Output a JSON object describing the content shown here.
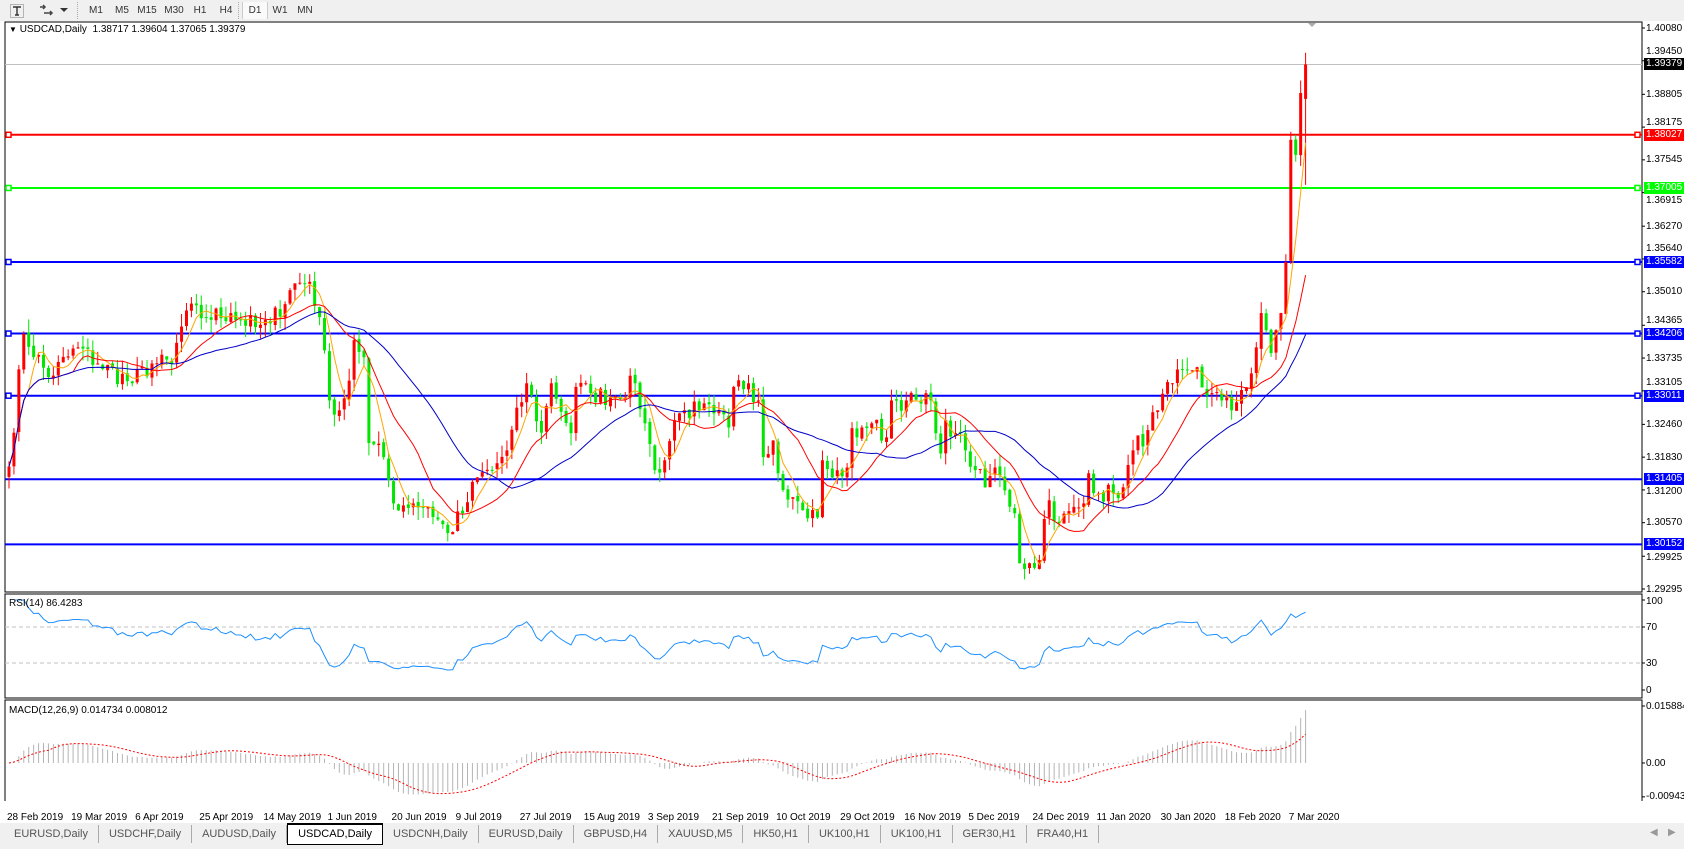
{
  "toolbar": {
    "icons": [
      "text-tool-icon",
      "arrows-tool-icon",
      "dropdown-arrow-icon"
    ],
    "timeframes": [
      {
        "label": "M1"
      },
      {
        "label": "M5"
      },
      {
        "label": "M15"
      },
      {
        "label": "M30"
      },
      {
        "label": "H1"
      },
      {
        "label": "H4"
      },
      {
        "label": "D1",
        "active": true
      },
      {
        "label": "W1"
      },
      {
        "label": "MN"
      }
    ]
  },
  "chart_header": {
    "symbol": "USDCAD,Daily",
    "ohlc_text": "1.38717 1.39604 1.37065 1.39379"
  },
  "colors": {
    "bull_candle": "#ff0000",
    "bear_candle": "#00e600",
    "ma_fast": "#ffa500",
    "ma_mid": "#ff0000",
    "ma_slow": "#0000c8",
    "rsi_line": "#1e90ff",
    "macd_hist": "#b4b4b4",
    "macd_signal": "#ff0000",
    "bid_line": "#c0c0c0"
  },
  "chart_data": {
    "type": "candlestick",
    "symbol": "USDCAD",
    "timeframe": "Daily",
    "last_bar": {
      "open": 1.38717,
      "high": 1.39604,
      "low": 1.37065,
      "close": 1.39379
    },
    "bid": "1.39379",
    "ylim": [
      1.29295,
      1.4008
    ],
    "y_ticks": [
      "1.40080",
      "1.39450",
      "1.38805",
      "1.38175",
      "1.37545",
      "1.36915",
      "1.36270",
      "1.35640",
      "1.35010",
      "1.34365",
      "1.33735",
      "1.33105",
      "1.32460",
      "1.31830",
      "1.31200",
      "1.30570",
      "1.29925",
      "1.29295"
    ],
    "x_ticks": [
      "28 Feb 2019",
      "19 Mar 2019",
      "6 Apr 2019",
      "25 Apr 2019",
      "14 May 2019",
      "1 Jun 2019",
      "20 Jun 2019",
      "9 Jul 2019",
      "27 Jul 2019",
      "15 Aug 2019",
      "3 Sep 2019",
      "21 Sep 2019",
      "10 Oct 2019",
      "29 Oct 2019",
      "16 Nov 2019",
      "5 Dec 2019",
      "24 Dec 2019",
      "11 Jan 2020",
      "30 Jan 2020",
      "18 Feb 2020",
      "7 Mar 2020"
    ],
    "x_tick_dates": [
      "2019-02-28",
      "2019-03-19",
      "2019-04-06",
      "2019-04-25",
      "2019-05-14",
      "2019-06-01",
      "2019-06-20",
      "2019-07-09",
      "2019-07-27",
      "2019-08-15",
      "2019-09-03",
      "2019-09-21",
      "2019-10-10",
      "2019-10-29",
      "2019-11-16",
      "2019-12-05",
      "2019-12-24",
      "2020-01-11",
      "2020-01-30",
      "2020-02-18",
      "2020-03-07"
    ],
    "close_path": [
      [
        "2019-02-28",
        1.3165
      ],
      [
        "2019-03-04",
        1.342
      ],
      [
        "2019-03-11",
        1.3337
      ],
      [
        "2019-03-20",
        1.3394
      ],
      [
        "2019-03-26",
        1.3363
      ],
      [
        "2019-04-05",
        1.3325
      ],
      [
        "2019-04-11",
        1.3363
      ],
      [
        "2019-04-16",
        1.3363
      ],
      [
        "2019-04-21",
        1.3465
      ],
      [
        "2019-04-26",
        1.3452
      ],
      [
        "2019-05-04",
        1.346
      ],
      [
        "2019-05-11",
        1.3433
      ],
      [
        "2019-05-16",
        1.344
      ],
      [
        "2019-05-22",
        1.3517
      ],
      [
        "2019-05-27",
        1.352
      ],
      [
        "2019-05-29",
        1.3452
      ],
      [
        "2019-06-01",
        1.3292
      ],
      [
        "2019-06-04",
        1.3273
      ],
      [
        "2019-06-07",
        1.333
      ],
      [
        "2019-06-08",
        1.3408
      ],
      [
        "2019-06-11",
        1.3375
      ],
      [
        "2019-06-13",
        1.321
      ],
      [
        "2019-06-17",
        1.3183
      ],
      [
        "2019-06-20",
        1.3094
      ],
      [
        "2019-06-26",
        1.3094
      ],
      [
        "2019-06-30",
        1.3087
      ],
      [
        "2019-07-06",
        1.3037
      ],
      [
        "2019-07-11",
        1.3075
      ],
      [
        "2019-07-14",
        1.3144
      ],
      [
        "2019-07-19",
        1.3158
      ],
      [
        "2019-07-23",
        1.3196
      ],
      [
        "2019-07-29",
        1.3325
      ],
      [
        "2019-08-02",
        1.323
      ],
      [
        "2019-08-05",
        1.3325
      ],
      [
        "2019-08-11",
        1.3229
      ],
      [
        "2019-08-12",
        1.3318
      ],
      [
        "2019-08-16",
        1.3306
      ],
      [
        "2019-08-22",
        1.3298
      ],
      [
        "2019-08-29",
        1.3325
      ],
      [
        "2019-09-01",
        1.3248
      ],
      [
        "2019-09-04",
        1.3158
      ],
      [
        "2019-09-07",
        1.3177
      ],
      [
        "2019-09-10",
        1.3254
      ],
      [
        "2019-09-13",
        1.3273
      ],
      [
        "2019-09-17",
        1.3273
      ],
      [
        "2019-09-21",
        1.3267
      ],
      [
        "2019-09-25",
        1.324
      ],
      [
        "2019-09-27",
        1.3318
      ],
      [
        "2019-10-01",
        1.3325
      ],
      [
        "2019-10-04",
        1.3292
      ],
      [
        "2019-10-05",
        1.3183
      ],
      [
        "2019-10-08",
        1.3215
      ],
      [
        "2019-10-10",
        1.3152
      ],
      [
        "2019-10-14",
        1.3106
      ],
      [
        "2019-10-18",
        1.3081
      ],
      [
        "2019-10-21",
        1.3067
      ],
      [
        "2019-10-23",
        1.3177
      ],
      [
        "2019-10-26",
        1.3144
      ],
      [
        "2019-10-30",
        1.3163
      ],
      [
        "2019-10-31",
        1.3215
      ],
      [
        "2019-11-03",
        1.324
      ],
      [
        "2019-11-06",
        1.3248
      ],
      [
        "2019-11-10",
        1.3221
      ],
      [
        "2019-11-12",
        1.3292
      ],
      [
        "2019-11-16",
        1.3292
      ],
      [
        "2019-11-20",
        1.3286
      ],
      [
        "2019-11-23",
        1.3292
      ],
      [
        "2019-11-25",
        1.3229
      ],
      [
        "2019-11-26",
        1.319
      ],
      [
        "2019-11-28",
        1.3254
      ],
      [
        "2019-11-30",
        1.3229
      ],
      [
        "2019-12-03",
        1.3196
      ],
      [
        "2019-12-06",
        1.3158
      ],
      [
        "2019-12-09",
        1.3125
      ],
      [
        "2019-12-12",
        1.3163
      ],
      [
        "2019-12-15",
        1.3119
      ],
      [
        "2019-12-18",
        1.3075
      ],
      [
        "2019-12-19",
        1.2979
      ],
      [
        "2019-12-22",
        1.2979
      ],
      [
        "2019-12-25",
        1.2985
      ],
      [
        "2019-12-26",
        1.3023
      ],
      [
        "2019-12-28",
        1.31
      ],
      [
        "2019-12-31",
        1.3056
      ],
      [
        "2020-01-07",
        1.3094
      ],
      [
        "2020-01-08",
        1.3152
      ],
      [
        "2020-01-11",
        1.3113
      ],
      [
        "2020-01-15",
        1.3113
      ],
      [
        "2020-01-18",
        1.3125
      ],
      [
        "2020-01-21",
        1.3196
      ],
      [
        "2020-01-25",
        1.3235
      ],
      [
        "2020-01-28",
        1.3273
      ],
      [
        "2020-02-02",
        1.3325
      ],
      [
        "2020-02-06",
        1.335
      ],
      [
        "2020-02-09",
        1.3356
      ],
      [
        "2020-02-10",
        1.3317
      ],
      [
        "2020-02-13",
        1.3306
      ],
      [
        "2020-02-17",
        1.3292
      ],
      [
        "2020-02-20",
        1.3273
      ],
      [
        "2020-02-22",
        1.3312
      ],
      [
        "2020-02-25",
        1.3344
      ],
      [
        "2020-02-26",
        1.3394
      ],
      [
        "2020-02-27",
        1.346
      ],
      [
        "2020-02-29",
        1.3427
      ],
      [
        "2020-03-01",
        1.3383
      ],
      [
        "2020-03-03",
        1.3427
      ],
      [
        "2020-03-04",
        1.346
      ],
      [
        "2020-03-06",
        1.3558
      ],
      [
        "2020-03-07",
        1.3793
      ],
      [
        "2020-03-08",
        1.3764
      ],
      [
        "2020-03-10",
        1.3883
      ],
      [
        "2020-03-11",
        1.39379
      ]
    ],
    "levels": [
      {
        "price": 1.38027,
        "label": "1.38027",
        "color": "#ff0000",
        "handles": true
      },
      {
        "price": 1.37005,
        "label": "1.37005",
        "color": "#00ff00",
        "handles": true
      },
      {
        "price": 1.35582,
        "label": "1.35582",
        "color": "#0000ff",
        "handles": true
      },
      {
        "price": 1.34206,
        "label": "1.34206",
        "color": "#0000ff",
        "handles": true
      },
      {
        "price": 1.33011,
        "label": "1.33011",
        "color": "#0000ff",
        "handles": true
      },
      {
        "price": 1.31405,
        "label": "1.31405",
        "color": "#0000ff",
        "handles": false
      },
      {
        "price": 1.30152,
        "label": "1.30152",
        "color": "#0000ff",
        "handles": false
      }
    ],
    "rsi": {
      "title": "RSI(14) 86.4283",
      "period": 14,
      "value": 86.4283,
      "ylim": [
        0,
        100
      ],
      "ticks": [
        "100",
        "70",
        "30",
        "0"
      ],
      "levels": [
        70,
        30
      ]
    },
    "macd": {
      "title": "MACD(12,26,9) 0.014734 0.008012",
      "fast": 12,
      "slow": 26,
      "signal": 9,
      "main": 0.014734,
      "signal_value": 0.008012,
      "ylim": [
        -0.009432,
        0.015884
      ],
      "ticks": [
        "0.015884",
        "0.00",
        "-0.009432"
      ]
    }
  },
  "tabs": [
    {
      "label": "EURUSD,Daily"
    },
    {
      "label": "USDCHF,Daily"
    },
    {
      "label": "AUDUSD,Daily"
    },
    {
      "label": "USDCAD,Daily",
      "active": true
    },
    {
      "label": "USDCNH,Daily"
    },
    {
      "label": "EURUSD,Daily"
    },
    {
      "label": "GBPUSD,H4"
    },
    {
      "label": "XAUUSD,M5"
    },
    {
      "label": "HK50,H1"
    },
    {
      "label": "UK100,H1"
    },
    {
      "label": "UK100,H1"
    },
    {
      "label": "GER30,H1"
    },
    {
      "label": "FRA40,H1"
    }
  ]
}
